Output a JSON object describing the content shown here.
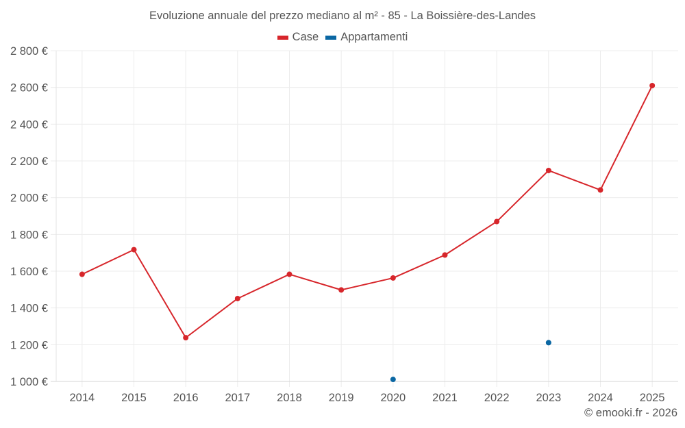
{
  "chart_data": {
    "type": "line",
    "title": "Evoluzione annuale del prezzo mediano al m² - 85 - La Boissière-des-Landes",
    "xlabel": "",
    "ylabel": "",
    "categories": [
      "2014",
      "2015",
      "2016",
      "2017",
      "2018",
      "2019",
      "2020",
      "2021",
      "2022",
      "2023",
      "2024",
      "2025"
    ],
    "ylim": [
      1000,
      2800
    ],
    "yticks": [
      1000,
      1200,
      1400,
      1600,
      1800,
      2000,
      2200,
      2400,
      2600,
      2800
    ],
    "ytick_labels": [
      "1 000 €",
      "1 200 €",
      "1 400 €",
      "1 600 €",
      "1 800 €",
      "2 000 €",
      "2 200 €",
      "2 400 €",
      "2 600 €",
      "2 800 €"
    ],
    "grid": true,
    "legend_position": "top-center",
    "series": [
      {
        "name": "Case",
        "color": "#d7262b",
        "values": [
          1583,
          1717,
          1238,
          1451,
          1583,
          1498,
          1563,
          1688,
          1870,
          2148,
          2042,
          2610
        ]
      },
      {
        "name": "Appartamenti",
        "color": "#0a67a3",
        "values": [
          null,
          null,
          null,
          null,
          null,
          null,
          1011,
          null,
          null,
          1211,
          null,
          null
        ]
      }
    ],
    "credit": "© emooki.fr - 2026"
  }
}
